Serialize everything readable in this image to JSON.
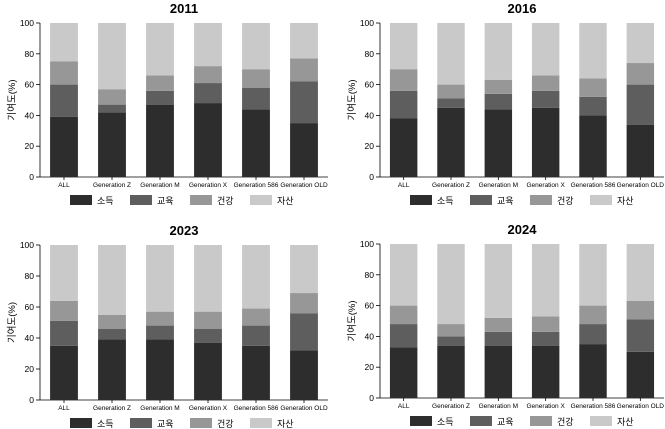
{
  "chart_data": [
    {
      "type": "bar",
      "stacked": true,
      "title": "2011",
      "ylabel": "기여도(%)",
      "ylim": [
        0,
        100
      ],
      "yticks": [
        0,
        20,
        40,
        60,
        80,
        100
      ],
      "categories": [
        "ALL",
        "Generation Z",
        "Generation M",
        "Generation X",
        "Generation 586",
        "Generation OLD"
      ],
      "series": [
        {
          "name": "소득",
          "values": [
            39,
            42,
            47,
            48,
            44,
            35
          ]
        },
        {
          "name": "교육",
          "values": [
            21,
            5,
            9,
            13,
            14,
            27
          ]
        },
        {
          "name": "건강",
          "values": [
            15,
            10,
            10,
            11,
            12,
            15
          ]
        },
        {
          "name": "자산",
          "values": [
            25,
            43,
            34,
            28,
            30,
            23
          ]
        }
      ],
      "grid": false,
      "legend_position": "bottom"
    },
    {
      "type": "bar",
      "stacked": true,
      "title": "2016",
      "ylabel": "기여도(%)",
      "ylim": [
        0,
        100
      ],
      "yticks": [
        0,
        20,
        40,
        60,
        80,
        100
      ],
      "categories": [
        "ALL",
        "Generation Z",
        "Generation M",
        "Generation X",
        "Generation 586",
        "Generation OLD"
      ],
      "series": [
        {
          "name": "소득",
          "values": [
            38,
            45,
            44,
            45,
            40,
            34
          ]
        },
        {
          "name": "교육",
          "values": [
            18,
            6,
            10,
            11,
            12,
            26
          ]
        },
        {
          "name": "건강",
          "values": [
            14,
            9,
            9,
            10,
            12,
            14
          ]
        },
        {
          "name": "자산",
          "values": [
            30,
            40,
            37,
            34,
            36,
            26
          ]
        }
      ],
      "grid": false,
      "legend_position": "bottom"
    },
    {
      "type": "bar",
      "stacked": true,
      "title": "2023",
      "ylabel": "기여도(%)",
      "ylim": [
        0,
        100
      ],
      "yticks": [
        0,
        20,
        40,
        60,
        80,
        100
      ],
      "categories": [
        "ALL",
        "Generation Z",
        "Generation M",
        "Generation X",
        "Generation 586",
        "Generation OLD"
      ],
      "series": [
        {
          "name": "소득",
          "values": [
            35,
            39,
            39,
            37,
            35,
            32
          ]
        },
        {
          "name": "교육",
          "values": [
            16,
            7,
            9,
            9,
            13,
            24
          ]
        },
        {
          "name": "건강",
          "values": [
            13,
            9,
            9,
            11,
            11,
            13
          ]
        },
        {
          "name": "자산",
          "values": [
            36,
            45,
            43,
            43,
            41,
            31
          ]
        }
      ],
      "grid": false,
      "legend_position": "bottom"
    },
    {
      "type": "bar",
      "stacked": true,
      "title": "2024",
      "ylabel": "기여도(%)",
      "ylim": [
        0,
        100
      ],
      "yticks": [
        0,
        20,
        40,
        60,
        80,
        100
      ],
      "categories": [
        "ALL",
        "Generation Z",
        "Generation M",
        "Generation X",
        "Generation 586",
        "Generation OLD"
      ],
      "series": [
        {
          "name": "소득",
          "values": [
            33,
            34,
            34,
            34,
            35,
            30
          ]
        },
        {
          "name": "교육",
          "values": [
            15,
            6,
            9,
            9,
            13,
            21
          ]
        },
        {
          "name": "건강",
          "values": [
            12,
            8,
            9,
            10,
            12,
            12
          ]
        },
        {
          "name": "자산",
          "values": [
            40,
            52,
            48,
            47,
            40,
            37
          ]
        }
      ],
      "grid": false,
      "legend_position": "bottom"
    }
  ],
  "colors": [
    "#2d2d2d",
    "#5e5e5e",
    "#979797",
    "#c9c9c9"
  ]
}
